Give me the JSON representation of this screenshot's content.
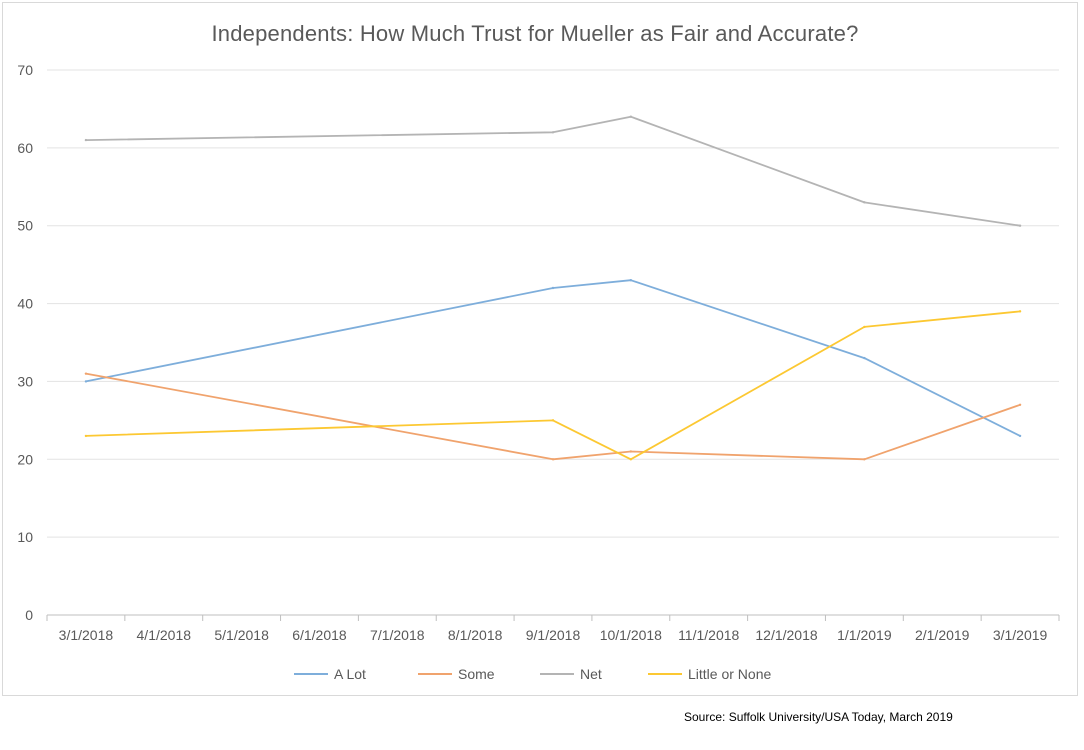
{
  "chart_data": {
    "type": "line",
    "title": "Independents: How Much Trust for Mueller as Fair and Accurate?",
    "xlabel": "",
    "ylabel": "",
    "categories": [
      "3/1/2018",
      "4/1/2018",
      "5/1/2018",
      "6/1/2018",
      "7/1/2018",
      "8/1/2018",
      "9/1/2018",
      "10/1/2018",
      "11/1/2018",
      "12/1/2018",
      "1/1/2019",
      "2/1/2019",
      "3/1/2019"
    ],
    "yticks": [
      "0",
      "10",
      "20",
      "30",
      "40",
      "50",
      "60",
      "70"
    ],
    "ylim": [
      0,
      70
    ],
    "grid": true,
    "legend_position": "bottom",
    "series": [
      {
        "name": "A Lot",
        "color": "#7eaedb",
        "x": [
          "3/1/2018",
          "9/1/2018",
          "10/1/2018",
          "1/1/2019",
          "3/1/2019"
        ],
        "values": [
          30,
          42,
          43,
          33,
          23
        ]
      },
      {
        "name": "Some",
        "color": "#f0a36d",
        "x": [
          "3/1/2018",
          "9/1/2018",
          "10/1/2018",
          "1/1/2019",
          "3/1/2019"
        ],
        "values": [
          31,
          20,
          21,
          20,
          27
        ]
      },
      {
        "name": "Net",
        "color": "#b4b4b4",
        "x": [
          "3/1/2018",
          "9/1/2018",
          "10/1/2018",
          "1/1/2019",
          "3/1/2019"
        ],
        "values": [
          61,
          62,
          64,
          53,
          50
        ]
      },
      {
        "name": "Little or None",
        "color": "#fcc832",
        "x": [
          "3/1/2018",
          "9/1/2018",
          "10/1/2018",
          "1/1/2019",
          "3/1/2019"
        ],
        "values": [
          23,
          25,
          20,
          37,
          39
        ]
      }
    ]
  },
  "source": "Source: Suffolk University/USA Today, March 2019"
}
